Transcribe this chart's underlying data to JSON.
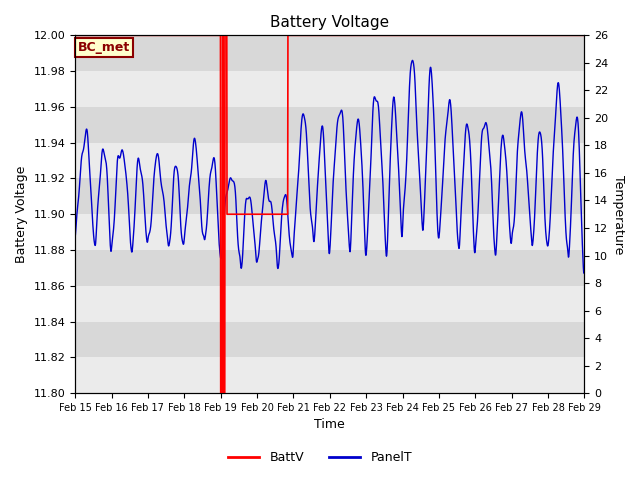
{
  "title": "Battery Voltage",
  "xlabel": "Time",
  "ylabel_left": "Battery Voltage",
  "ylabel_right": "Temperature",
  "ylim_left": [
    11.8,
    12.0
  ],
  "ylim_right": [
    0,
    26
  ],
  "yticks_left": [
    11.8,
    11.82,
    11.84,
    11.86,
    11.88,
    11.9,
    11.92,
    11.94,
    11.96,
    11.98,
    12.0
  ],
  "yticks_right": [
    0,
    2,
    4,
    6,
    8,
    10,
    12,
    14,
    16,
    18,
    20,
    22,
    24,
    26
  ],
  "xtick_labels": [
    "Feb 15",
    "Feb 16",
    "Feb 17",
    "Feb 18",
    "Feb 19",
    "Feb 20",
    "Feb 21",
    "Feb 22",
    "Feb 23",
    "Feb 24",
    "Feb 25",
    "Feb 26",
    "Feb 27",
    "Feb 28",
    "Feb 29"
  ],
  "background_color": "#ebebeb",
  "stripe_color": "#d8d8d8",
  "annotation_text": "BC_met",
  "annotation_facecolor": "#ffffcc",
  "annotation_edgecolor": "#8b0000",
  "battv_color": "#ff0000",
  "panelt_color": "#0000cc",
  "legend_labels": [
    "BattV",
    "PanelT"
  ]
}
